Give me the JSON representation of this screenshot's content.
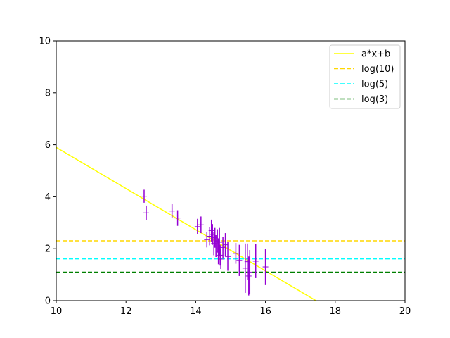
{
  "chart_data": {
    "type": "scatter",
    "xlim": [
      10,
      20
    ],
    "ylim": [
      0,
      10
    ],
    "x_ticks": [
      10,
      12,
      14,
      16,
      18,
      20
    ],
    "y_ticks": [
      0,
      2,
      4,
      6,
      8,
      10
    ],
    "x_tick_labels": [
      "10",
      "12",
      "14",
      "16",
      "18",
      "20"
    ],
    "y_tick_labels": [
      "0",
      "2",
      "4",
      "6",
      "8",
      "10"
    ],
    "grid": false,
    "legend_position": "top-right",
    "fit_line": {
      "name": "a*x+b",
      "color": "#ffff00",
      "points": [
        [
          10,
          5.9
        ],
        [
          17.45,
          0
        ]
      ]
    },
    "hlines": [
      {
        "name": "log(10)",
        "y": 2.302585,
        "color": "#ffd700",
        "style": "dashed"
      },
      {
        "name": "log(5)",
        "y": 1.609438,
        "color": "#00ffff",
        "style": "dashed"
      },
      {
        "name": "log(3)",
        "y": 1.098612,
        "color": "#008000",
        "style": "dashed"
      }
    ],
    "points_series": {
      "color": "#9400d3",
      "marker": "+",
      "points": [
        {
          "x": 12.52,
          "y": 4.02,
          "yerr": 0.25
        },
        {
          "x": 12.58,
          "y": 3.38,
          "yerr": 0.28
        },
        {
          "x": 13.32,
          "y": 3.45,
          "yerr": 0.28
        },
        {
          "x": 13.48,
          "y": 3.18,
          "yerr": 0.3
        },
        {
          "x": 14.05,
          "y": 2.85,
          "yerr": 0.3
        },
        {
          "x": 14.15,
          "y": 2.92,
          "yerr": 0.32
        },
        {
          "x": 14.32,
          "y": 2.35,
          "yerr": 0.3
        },
        {
          "x": 14.4,
          "y": 2.48,
          "yerr": 0.35
        },
        {
          "x": 14.45,
          "y": 2.7,
          "yerr": 0.42
        },
        {
          "x": 14.48,
          "y": 2.55,
          "yerr": 0.4
        },
        {
          "x": 14.52,
          "y": 2.2,
          "yerr": 0.45
        },
        {
          "x": 14.55,
          "y": 2.42,
          "yerr": 0.38
        },
        {
          "x": 14.58,
          "y": 2.1,
          "yerr": 0.42
        },
        {
          "x": 14.62,
          "y": 2.3,
          "yerr": 0.45
        },
        {
          "x": 14.65,
          "y": 1.9,
          "yerr": 0.5
        },
        {
          "x": 14.68,
          "y": 2.25,
          "yerr": 0.55
        },
        {
          "x": 14.7,
          "y": 1.75,
          "yerr": 0.4
        },
        {
          "x": 14.72,
          "y": 1.6,
          "yerr": 0.38
        },
        {
          "x": 14.78,
          "y": 2.05,
          "yerr": 0.4
        },
        {
          "x": 14.85,
          "y": 2.15,
          "yerr": 0.45
        },
        {
          "x": 14.92,
          "y": 1.7,
          "yerr": 0.55
        },
        {
          "x": 15.15,
          "y": 1.82,
          "yerr": 0.4
        },
        {
          "x": 15.25,
          "y": 1.55,
          "yerr": 0.6
        },
        {
          "x": 15.42,
          "y": 1.25,
          "yerr": 0.95
        },
        {
          "x": 15.48,
          "y": 1.5,
          "yerr": 0.7
        },
        {
          "x": 15.52,
          "y": 0.95,
          "yerr": 0.75
        },
        {
          "x": 15.55,
          "y": 1.1,
          "yerr": 0.85
        },
        {
          "x": 15.72,
          "y": 1.52,
          "yerr": 0.65
        },
        {
          "x": 16.0,
          "y": 1.3,
          "yerr": 0.7
        }
      ]
    }
  }
}
